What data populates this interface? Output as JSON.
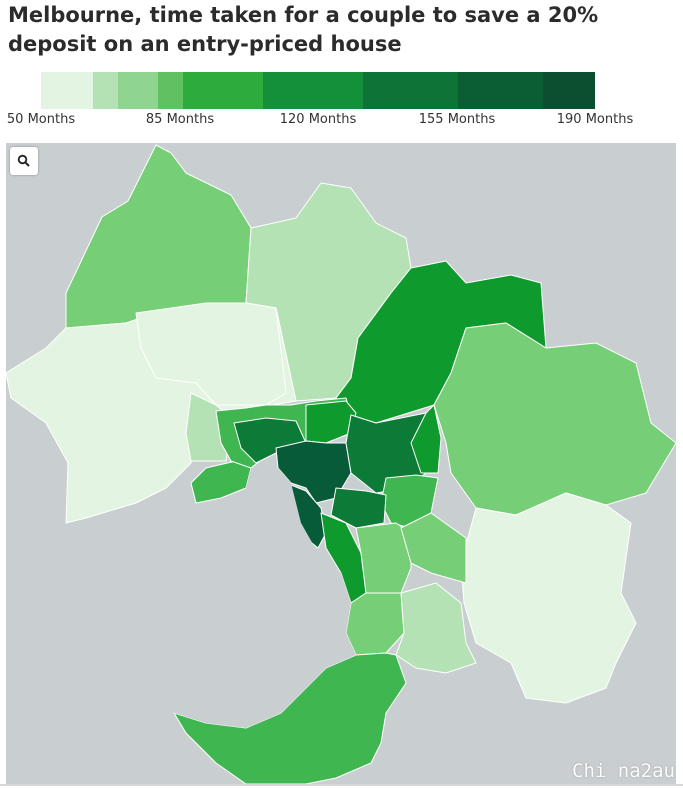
{
  "title": "Melbourne, time taken for a couple to save a 20% deposit on an entry-priced house",
  "legend": {
    "labels": [
      "50 Months",
      "85 Months",
      "120 Months",
      "155 Months",
      "190 Months"
    ],
    "scale_colors": [
      "#e3f4e3",
      "#b4e2b4",
      "#8fd48f",
      "#5fc15f",
      "#2eab3d",
      "#14903a",
      "#0d7336",
      "#0b5e34",
      "#0a4f30"
    ]
  },
  "search": {
    "icon": "search-icon"
  },
  "watermark": "Chi na2au",
  "colors": {
    "background": "#c9cfd1",
    "c1": "#e3f4e3",
    "c2": "#b4e2b4",
    "c3": "#76ce76",
    "c4": "#3fb64f",
    "c5": "#0f9a2e",
    "c6": "#0b7b37",
    "c7": "#075b38"
  }
}
